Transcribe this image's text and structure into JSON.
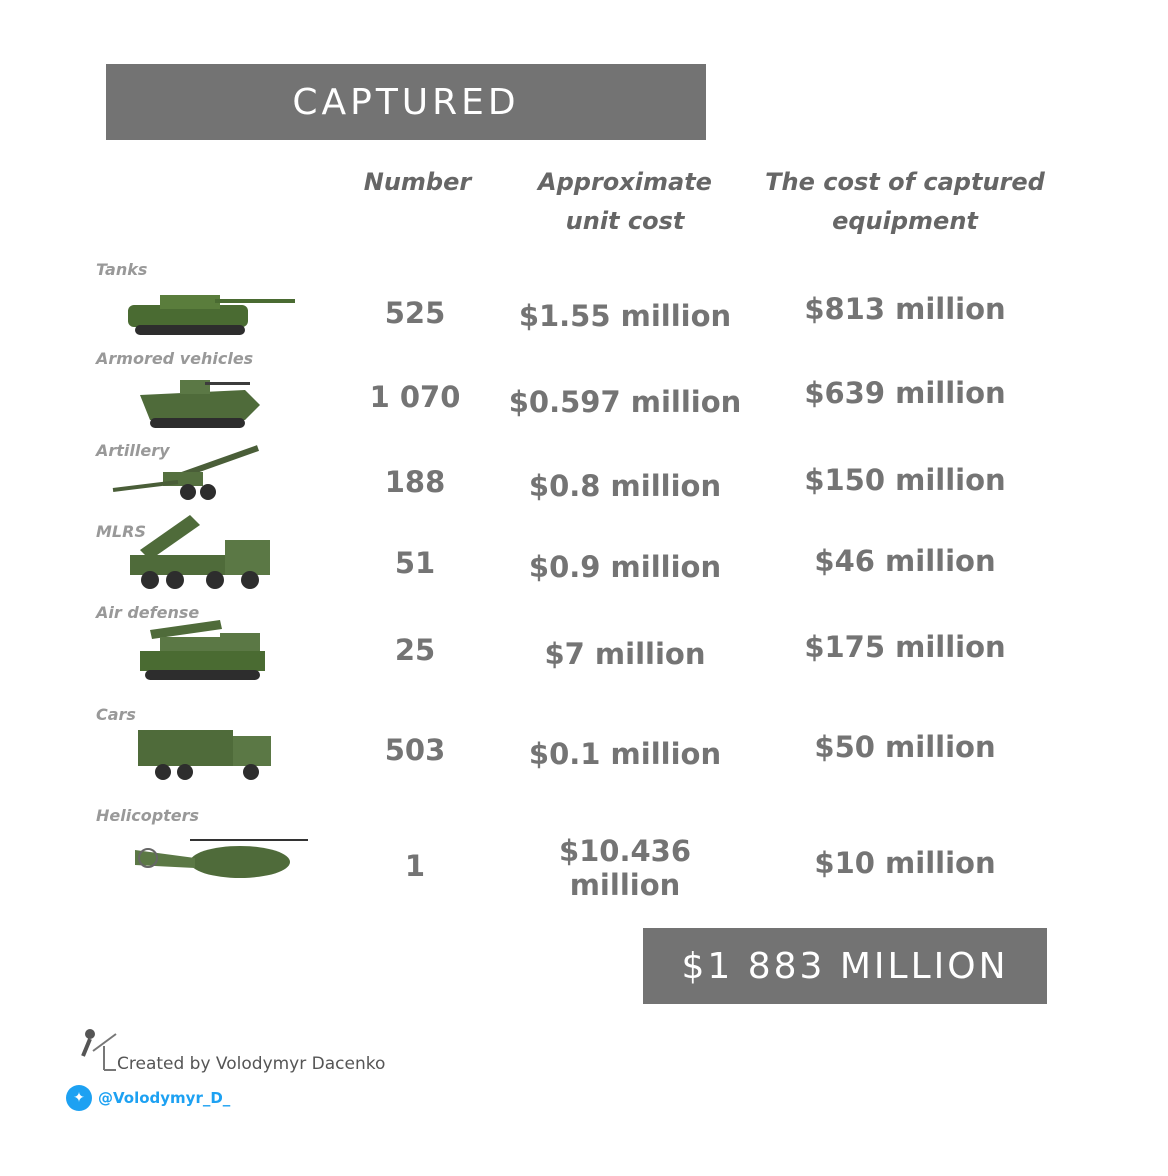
{
  "title": "CAPTURED",
  "headers": {
    "number": "Number",
    "unit_cost_1": "Approximate",
    "unit_cost_2": "unit cost",
    "total_1": "The cost of captured",
    "total_2": "equipment"
  },
  "rows": [
    {
      "label": "Tanks",
      "number": "525",
      "unit_cost": "$1.55 million",
      "total": "$813  million",
      "icon": "tank"
    },
    {
      "label": "Armored vehicles",
      "number": "1 070",
      "unit_cost": "$0.597 million",
      "total": "$639 million",
      "icon": "ifv"
    },
    {
      "label": "Artillery",
      "number": "188",
      "unit_cost": "$0.8 million",
      "total": "$150 million",
      "icon": "howitzer"
    },
    {
      "label": "MLRS",
      "number": "51",
      "unit_cost": "$0.9 million",
      "total": "$46 million",
      "icon": "mlrs-truck"
    },
    {
      "label": "Air defense",
      "number": "25",
      "unit_cost": "$7  million",
      "total": "$175 million",
      "icon": "sam-launcher"
    },
    {
      "label": "Cars",
      "number": "503",
      "unit_cost": "$0.1 million",
      "total": "$50 million",
      "icon": "truck"
    },
    {
      "label": "Helicopters",
      "number": "1",
      "unit_cost": "$10.436 million",
      "total": "$10 million",
      "icon": "helicopter"
    }
  ],
  "grand_total": "$1 883 MILLION",
  "credit": "Created by Volodymyr Dacenko",
  "twitter": "@Volodymyr_D_",
  "colors": {
    "banner": "#737373",
    "text": "#747474",
    "vehicle": "#4a6b32",
    "twitter": "#1da1f2"
  }
}
